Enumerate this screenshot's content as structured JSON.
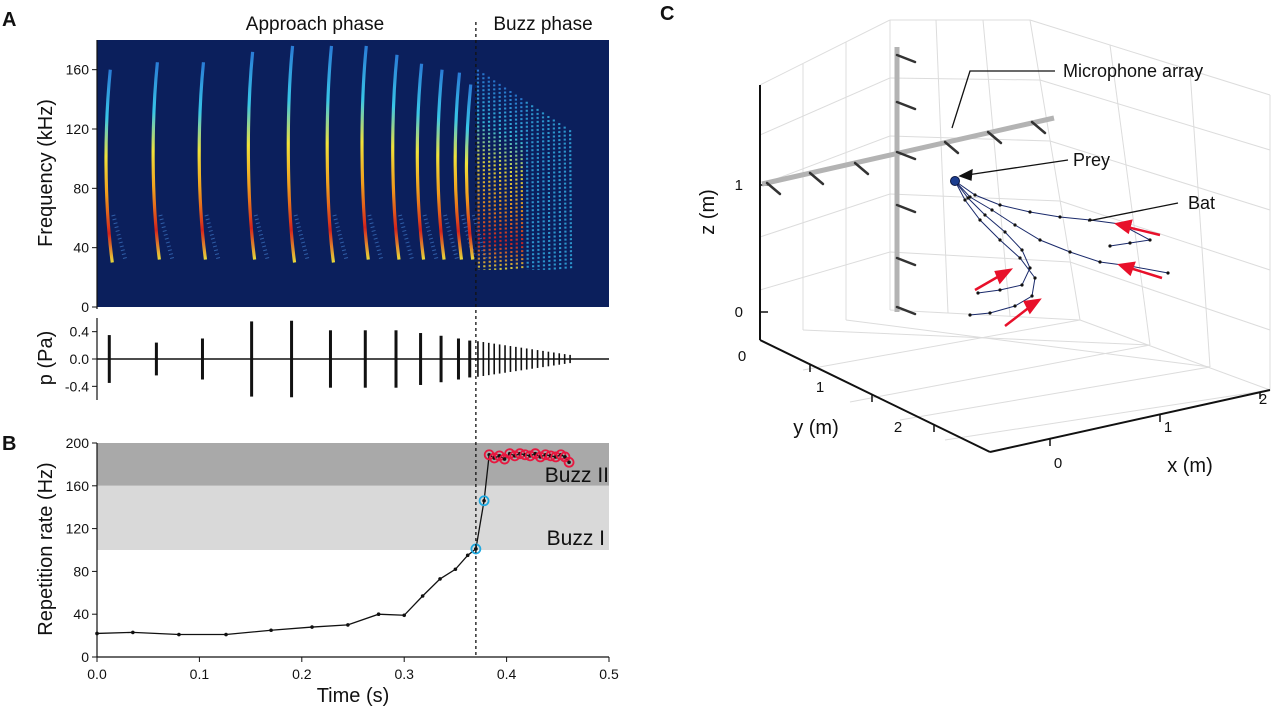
{
  "panels": {
    "a": {
      "letter": "A",
      "phase_labels": {
        "approach": "Approach phase",
        "buzz": "Buzz phase"
      }
    },
    "b": {
      "letter": "B"
    },
    "c": {
      "letter": "C"
    }
  },
  "colors": {
    "spectrogram_bg": "#0b1f5c",
    "buzz_ii_band": "#a9a9a9",
    "buzz_i_band": "#d9d9d9",
    "buzz_ii_marker": "#e8173f",
    "buzz_i_marker": "#1fa9e0",
    "arrow": "#e8102a",
    "trajectory": "#1a2a6b",
    "prey": "#1c3d8f",
    "mic_array": "#b3b3b3"
  },
  "chart_data": [
    {
      "id": "spectrogram",
      "type": "heatmap",
      "title": "",
      "xlabel": "Time (s)",
      "ylabel": "Frequency (kHz)",
      "xlim": [
        0,
        0.5
      ],
      "ylim": [
        0,
        180
      ],
      "y_ticks": [
        0,
        40,
        80,
        120,
        160
      ],
      "y_tick_labels": [
        "0",
        "40",
        "80",
        "120",
        "160"
      ],
      "phase_boundary_time": 0.37,
      "calls": [
        {
          "t": 0.012,
          "fmax": 160,
          "fmin": 30
        },
        {
          "t": 0.058,
          "fmax": 165,
          "fmin": 32
        },
        {
          "t": 0.103,
          "fmax": 165,
          "fmin": 32
        },
        {
          "t": 0.151,
          "fmax": 172,
          "fmin": 32
        },
        {
          "t": 0.19,
          "fmax": 176,
          "fmin": 30
        },
        {
          "t": 0.228,
          "fmax": 176,
          "fmin": 30
        },
        {
          "t": 0.262,
          "fmax": 176,
          "fmin": 32
        },
        {
          "t": 0.292,
          "fmax": 170,
          "fmin": 32
        },
        {
          "t": 0.316,
          "fmax": 164,
          "fmin": 32
        },
        {
          "t": 0.336,
          "fmax": 160,
          "fmin": 32
        },
        {
          "t": 0.353,
          "fmax": 158,
          "fmin": 32
        },
        {
          "t": 0.364,
          "fmax": 150,
          "fmin": 32
        }
      ],
      "buzz_calls": {
        "t_start": 0.372,
        "t_end": 0.462,
        "count": 18
      }
    },
    {
      "id": "waveform",
      "type": "line",
      "ylabel": "p (Pa)",
      "xlim": [
        0,
        0.5
      ],
      "ylim": [
        -0.6,
        0.6
      ],
      "y_ticks": [
        0.4,
        0.0,
        -0.4
      ],
      "y_tick_labels": [
        "0.4",
        "0.0",
        "-0.4"
      ],
      "pulses": [
        {
          "t": 0.012,
          "amp": 0.35
        },
        {
          "t": 0.058,
          "amp": 0.24
        },
        {
          "t": 0.103,
          "amp": 0.3
        },
        {
          "t": 0.151,
          "amp": 0.55
        },
        {
          "t": 0.19,
          "amp": 0.56
        },
        {
          "t": 0.228,
          "amp": 0.42
        },
        {
          "t": 0.262,
          "amp": 0.42
        },
        {
          "t": 0.292,
          "amp": 0.42
        },
        {
          "t": 0.316,
          "amp": 0.38
        },
        {
          "t": 0.336,
          "amp": 0.34
        },
        {
          "t": 0.353,
          "amp": 0.3
        },
        {
          "t": 0.364,
          "amp": 0.27
        }
      ],
      "buzz_pulses": {
        "t_start": 0.372,
        "t_end": 0.462,
        "count": 18,
        "amp_start": 0.26,
        "amp_end": 0.06
      }
    },
    {
      "id": "repetition_rate",
      "type": "line",
      "xlabel": "Time (s)",
      "ylabel": "Repetition rate (Hz)",
      "xlim": [
        0,
        0.5
      ],
      "ylim": [
        0,
        200
      ],
      "x_ticks": [
        0,
        0.1,
        0.2,
        0.3,
        0.4,
        0.5
      ],
      "x_tick_labels": [
        "0.0",
        "0.1",
        "0.2",
        "0.3",
        "0.4",
        "0.5"
      ],
      "y_ticks": [
        0,
        40,
        80,
        120,
        160,
        200
      ],
      "y_tick_labels": [
        "0",
        "40",
        "80",
        "120",
        "160",
        "200"
      ],
      "bands": [
        {
          "label": "Buzz II",
          "from": 160,
          "to": 200
        },
        {
          "label": "Buzz I",
          "from": 100,
          "to": 160
        }
      ],
      "phase_boundary_time": 0.37,
      "series": [
        {
          "name": "Approach",
          "x": [
            0.0,
            0.035,
            0.08,
            0.126,
            0.17,
            0.21,
            0.245,
            0.275,
            0.3,
            0.318,
            0.335,
            0.35,
            0.362,
            0.37
          ],
          "y": [
            22,
            23,
            21,
            21,
            25,
            28,
            30,
            40,
            39,
            57,
            73,
            82,
            95,
            101
          ]
        },
        {
          "name": "Buzz I",
          "x": [
            0.37,
            0.378
          ],
          "y": [
            101,
            146
          ]
        },
        {
          "name": "Buzz II",
          "x": [
            0.383,
            0.388,
            0.393,
            0.398,
            0.403,
            0.408,
            0.413,
            0.418,
            0.423,
            0.428,
            0.433,
            0.438,
            0.443,
            0.448,
            0.453,
            0.457,
            0.461
          ],
          "y": [
            189,
            186,
            188,
            185,
            190,
            188,
            190,
            189,
            188,
            190,
            187,
            189,
            188,
            187,
            189,
            187,
            182
          ]
        }
      ]
    },
    {
      "id": "trajectory_3d",
      "type": "line",
      "xlabel": "x (m)",
      "ylabel": "y (m)",
      "zlabel": "z (m)",
      "x_ticks": [
        0,
        1,
        2
      ],
      "y_ticks": [
        0,
        1,
        2
      ],
      "z_ticks": [
        0,
        1
      ],
      "annotations": [
        "Microphone array",
        "Prey",
        "Bat"
      ]
    }
  ]
}
